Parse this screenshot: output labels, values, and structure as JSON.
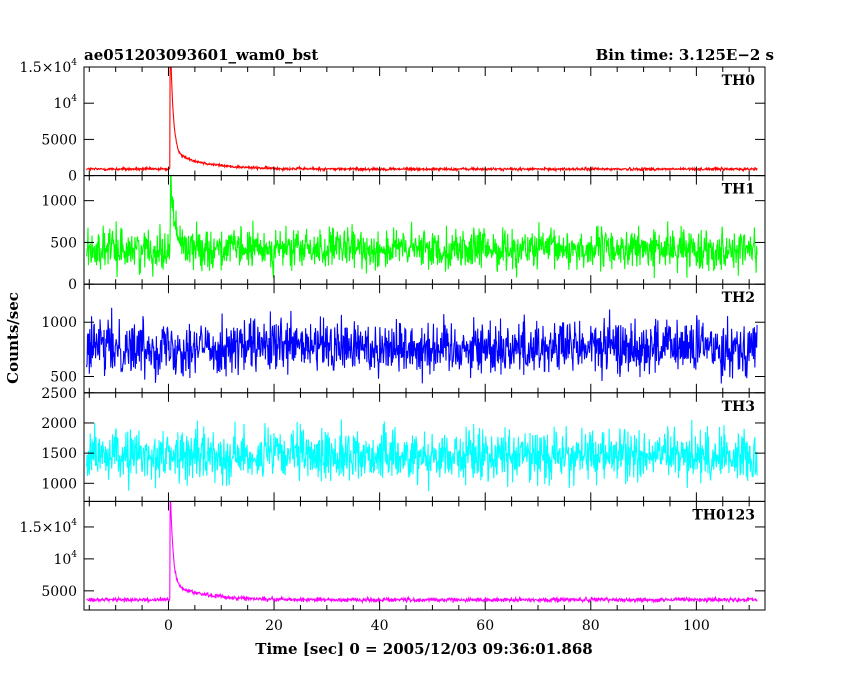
{
  "chart_data": {
    "type": "line",
    "title": "ae051203093601_wam0_bst",
    "subtitle": "Bin time: 3.125E−2 s",
    "xlabel": "Time [sec] 0 = 2005/12/03 09:36:01.868",
    "ylabel": "Counts/sec",
    "xlim": [
      -16,
      113
    ],
    "x_ticks": [
      0,
      20,
      40,
      60,
      80,
      100
    ],
    "x_tick_labels": [
      "0",
      "20",
      "40",
      "60",
      "80",
      "100"
    ],
    "x_data_range": [
      -15.5,
      111.5
    ],
    "grid": false,
    "panels": [
      {
        "name": "TH0",
        "color": "#ff0000",
        "ylim": [
          0,
          15000
        ],
        "ticks": [
          {
            "v": 0,
            "text": "0"
          },
          {
            "v": 5000,
            "text": "5000"
          },
          {
            "v": 10000,
            "mant": "",
            "exp": "4"
          },
          {
            "v": 15000,
            "mant": "1.5×",
            "exp": "4"
          }
        ],
        "baseline": 900,
        "noise": 140,
        "burst": {
          "peak": 18000,
          "t0": 0.3,
          "decay": 0.5,
          "tail": 2500,
          "taildecay": 6
        }
      },
      {
        "name": "TH1",
        "color": "#00ff00",
        "ylim": [
          0,
          1300
        ],
        "ticks": [
          {
            "v": 0,
            "text": "0"
          },
          {
            "v": 500,
            "text": "500"
          },
          {
            "v": 1000,
            "text": "1000"
          }
        ],
        "baseline": 420,
        "noise": 170,
        "burst": {
          "peak": 900,
          "t0": 0.4,
          "decay": 0.6,
          "tail": 100,
          "taildecay": 3
        }
      },
      {
        "name": "TH2",
        "color": "#0000ff",
        "ylim": [
          350,
          1350
        ],
        "ticks": [
          {
            "v": 500,
            "text": "500"
          },
          {
            "v": 1000,
            "text": "1000"
          }
        ],
        "baseline": 770,
        "noise": 180,
        "burst": {
          "peak": 0,
          "t0": 0,
          "decay": 1,
          "tail": 0,
          "taildecay": 1
        }
      },
      {
        "name": "TH3",
        "color": "#00ffff",
        "ylim": [
          700,
          2500
        ],
        "ticks": [
          {
            "v": 1000,
            "text": "1000"
          },
          {
            "v": 1500,
            "text": "1500"
          },
          {
            "v": 2000,
            "text": "2000"
          },
          {
            "v": 2500,
            "text": "2500"
          }
        ],
        "baseline": 1460,
        "noise": 300,
        "burst": {
          "peak": 0,
          "t0": 0,
          "decay": 1,
          "tail": 0,
          "taildecay": 1
        }
      },
      {
        "name": "TH0123",
        "color": "#ff00ff",
        "ylim": [
          2000,
          19000
        ],
        "ticks": [
          {
            "v": 5000,
            "text": "5000"
          },
          {
            "v": 10000,
            "mant": "",
            "exp": "4"
          },
          {
            "v": 15000,
            "mant": "1.5×",
            "exp": "4"
          }
        ],
        "baseline": 3600,
        "noise": 230,
        "burst": {
          "peak": 16500,
          "t0": 0.3,
          "decay": 0.5,
          "tail": 2500,
          "taildecay": 6
        }
      }
    ]
  }
}
